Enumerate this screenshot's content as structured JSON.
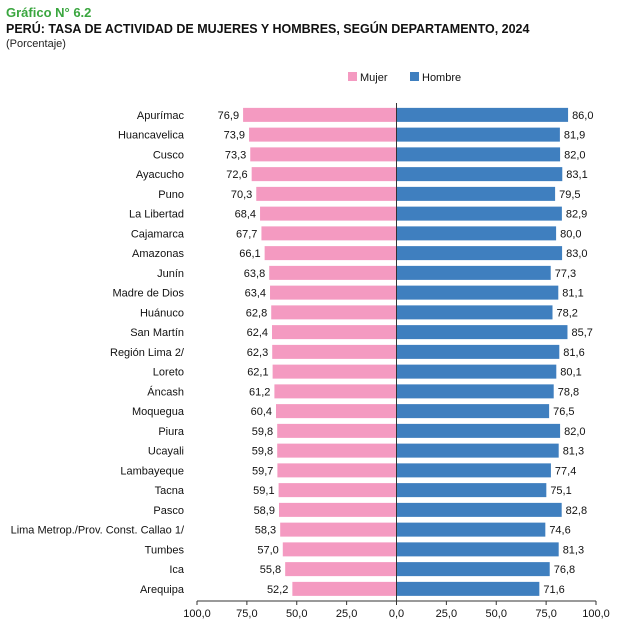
{
  "header": {
    "figure_label": "Gráfico N° 6.2",
    "title": "PERÚ: TASA DE ACTIVIDAD DE MUJERES Y HOMBRES, SEGÚN DEPARTAMENTO, 2024",
    "subtitle": "(Porcentaje)"
  },
  "colors": {
    "mujer": "#f49ac1",
    "hombre": "#3f7fbf",
    "axis": "#333333"
  },
  "chart_data": {
    "type": "bar",
    "orientation": "horizontal-diverging",
    "title": "PERÚ: TASA DE ACTIVIDAD DE MUJERES Y HOMBRES, SEGÚN DEPARTAMENTO, 2024",
    "subtitle": "(Porcentaje)",
    "categories": [
      "Apurímac",
      "Huancavelica",
      "Cusco",
      "Ayacucho",
      "Puno",
      "La Libertad",
      "Cajamarca",
      "Amazonas",
      "Junín",
      "Madre de Dios",
      "Huánuco",
      "San Martín",
      "Región Lima 2/",
      "Loreto",
      "Áncash",
      "Moquegua",
      "Piura",
      "Ucayali",
      "Lambayeque",
      "Tacna",
      "Pasco",
      "Lima Metrop./Prov. Const. Callao 1/",
      "Tumbes",
      "Ica",
      "Arequipa"
    ],
    "series": [
      {
        "name": "Mujer",
        "values": [
          76.9,
          73.9,
          73.3,
          72.6,
          70.3,
          68.4,
          67.7,
          66.1,
          63.8,
          63.4,
          62.8,
          62.4,
          62.3,
          62.1,
          61.2,
          60.4,
          59.8,
          59.8,
          59.7,
          59.1,
          58.9,
          58.3,
          57.0,
          55.8,
          52.2
        ],
        "labels": [
          "76,9",
          "73,9",
          "73,3",
          "72,6",
          "70,3",
          "68,4",
          "67,7",
          "66,1",
          "63,8",
          "63,4",
          "62,8",
          "62,4",
          "62,3",
          "62,1",
          "61,2",
          "60,4",
          "59,8",
          "59,8",
          "59,7",
          "59,1",
          "58,9",
          "58,3",
          "57,0",
          "55,8",
          "52,2"
        ]
      },
      {
        "name": "Hombre",
        "values": [
          86.0,
          81.9,
          82.0,
          83.1,
          79.5,
          82.9,
          80.0,
          83.0,
          77.3,
          81.1,
          78.2,
          85.7,
          81.6,
          80.1,
          78.8,
          76.5,
          82.0,
          81.3,
          77.4,
          75.1,
          82.8,
          74.6,
          81.3,
          76.8,
          71.6
        ],
        "labels": [
          "86,0",
          "81,9",
          "82,0",
          "83,1",
          "79,5",
          "82,9",
          "80,0",
          "83,0",
          "77,3",
          "81,1",
          "78,2",
          "85,7",
          "81,6",
          "80,1",
          "78,8",
          "76,5",
          "82,0",
          "81,3",
          "77,4",
          "75,1",
          "82,8",
          "74,6",
          "81,3",
          "76,8",
          "71,6"
        ]
      }
    ],
    "xlim": [
      -100,
      100
    ],
    "x_ticks": [
      -100,
      -75,
      -50,
      -25,
      0,
      25,
      50,
      75,
      100
    ],
    "x_tick_labels": [
      "100,0",
      "75,0",
      "50,0",
      "25,0",
      "0,0",
      "25,0",
      "50,0",
      "75,0",
      "100,0"
    ],
    "legend": {
      "position": "top-right",
      "entries": [
        "Mujer",
        "Hombre"
      ]
    },
    "grid": false
  }
}
